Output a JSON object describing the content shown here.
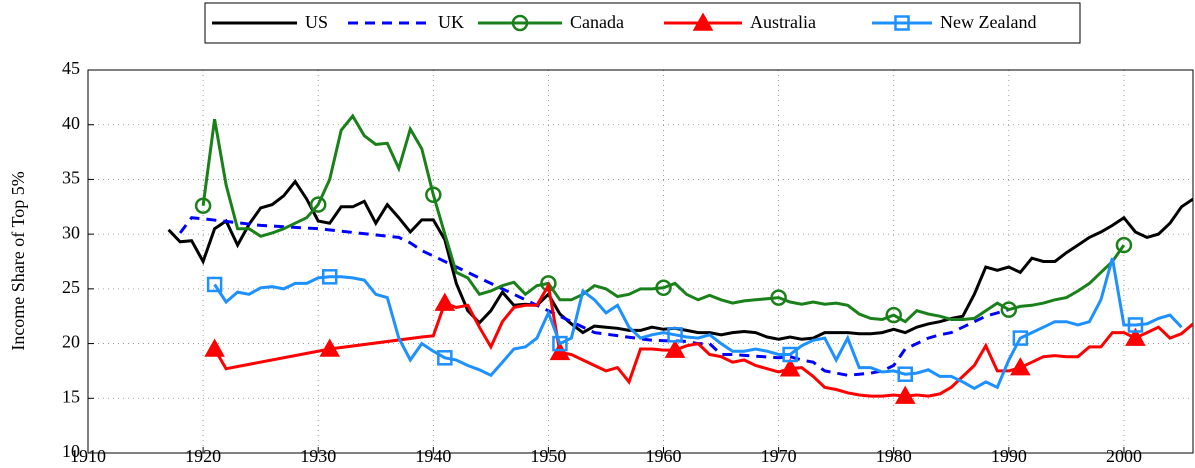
{
  "chart_data": {
    "type": "line",
    "y_label": "Income Share of Top 5%",
    "xlim": [
      1910,
      2006
    ],
    "xticks": [
      1910,
      1920,
      1930,
      1940,
      1950,
      1960,
      1970,
      1980,
      1990,
      2000
    ],
    "ylim": [
      10,
      45
    ],
    "yticks": [
      10,
      15,
      20,
      25,
      30,
      35,
      40,
      45
    ],
    "grid": true,
    "legend": "top",
    "marker_every": 10,
    "series": [
      {
        "name": "US",
        "color": "#000000",
        "dash": "solid",
        "marker": "none",
        "x": [
          1917,
          1918,
          1919,
          1920,
          1921,
          1922,
          1923,
          1924,
          1925,
          1926,
          1927,
          1928,
          1929,
          1930,
          1931,
          1932,
          1933,
          1934,
          1935,
          1936,
          1937,
          1938,
          1939,
          1940,
          1941,
          1942,
          1943,
          1944,
          1945,
          1946,
          1947,
          1948,
          1949,
          1950,
          1951,
          1952,
          1953,
          1954,
          1955,
          1956,
          1957,
          1958,
          1959,
          1960,
          1961,
          1962,
          1963,
          1964,
          1965,
          1966,
          1967,
          1968,
          1969,
          1970,
          1971,
          1972,
          1973,
          1974,
          1975,
          1976,
          1977,
          1978,
          1979,
          1980,
          1981,
          1982,
          1983,
          1984,
          1985,
          1986,
          1987,
          1988,
          1989,
          1990,
          1991,
          1992,
          1993,
          1994,
          1995,
          1996,
          1997,
          1998,
          1999,
          2000,
          2001,
          2002,
          2003,
          2004,
          2005,
          2006
        ],
        "values": [
          30.4,
          29.3,
          29.4,
          27.5,
          30.5,
          31.2,
          29.0,
          30.9,
          32.4,
          32.7,
          33.5,
          34.8,
          33.2,
          31.2,
          31.0,
          32.5,
          32.5,
          33.0,
          31.0,
          32.7,
          31.5,
          30.2,
          31.3,
          31.3,
          29.5,
          25.5,
          23.0,
          21.9,
          23.0,
          24.7,
          23.5,
          23.6,
          23.5,
          24.5,
          22.7,
          21.8,
          21.0,
          21.6,
          21.5,
          21.4,
          21.2,
          21.2,
          21.5,
          21.3,
          21.4,
          21.2,
          21.0,
          21.0,
          20.8,
          21.0,
          21.1,
          21.0,
          20.6,
          20.4,
          20.6,
          20.4,
          20.5,
          21.0,
          21.0,
          21.0,
          20.9,
          20.9,
          21.0,
          21.3,
          21.0,
          21.5,
          21.8,
          22.0,
          22.3,
          22.5,
          24.5,
          27.0,
          26.7,
          27.0,
          26.5,
          27.8,
          27.5,
          27.5,
          28.3,
          29.0,
          29.7,
          30.2,
          30.8,
          31.5,
          30.2,
          29.7,
          30.0,
          31.0,
          32.5,
          33.2
        ]
      },
      {
        "name": "UK",
        "color": "#0000ff",
        "dash": "dashed",
        "marker": "none",
        "x": [
          1918,
          1919,
          1920,
          1925,
          1930,
          1937,
          1938,
          1939,
          1940,
          1945,
          1949,
          1954,
          1959,
          1962,
          1963,
          1964,
          1965,
          1966,
          1970,
          1971,
          1972,
          1973,
          1974,
          1975,
          1976,
          1977,
          1978,
          1979,
          1980,
          1981,
          1982,
          1983,
          1984,
          1985,
          1986,
          1987,
          1988,
          1989,
          1990
        ],
        "values": [
          30.1,
          31.5,
          31.4,
          30.8,
          30.5,
          29.7,
          29.2,
          28.5,
          28.0,
          25.5,
          23.5,
          21.0,
          20.3,
          20.2,
          20.0,
          20.0,
          19.0,
          19.0,
          18.7,
          18.8,
          18.5,
          18.3,
          17.5,
          17.3,
          17.1,
          17.2,
          17.3,
          17.5,
          18.0,
          19.5,
          20.0,
          20.5,
          20.8,
          21.0,
          21.5,
          22.0,
          22.5,
          22.8,
          23.1
        ]
      },
      {
        "name": "Canada",
        "color": "#1a801a",
        "dash": "solid",
        "marker": "circle",
        "x": [
          1920,
          1921,
          1922,
          1923,
          1924,
          1925,
          1926,
          1927,
          1928,
          1929,
          1930,
          1931,
          1932,
          1933,
          1934,
          1935,
          1936,
          1937,
          1938,
          1939,
          1940,
          1941,
          1942,
          1943,
          1944,
          1945,
          1946,
          1947,
          1948,
          1949,
          1950,
          1951,
          1952,
          1953,
          1954,
          1955,
          1956,
          1957,
          1958,
          1959,
          1960,
          1961,
          1962,
          1963,
          1964,
          1965,
          1966,
          1967,
          1968,
          1969,
          1970,
          1971,
          1972,
          1973,
          1974,
          1975,
          1976,
          1977,
          1978,
          1979,
          1980,
          1981,
          1982,
          1983,
          1984,
          1985,
          1986,
          1987,
          1988,
          1989,
          1990,
          1991,
          1992,
          1993,
          1994,
          1995,
          1996,
          1997,
          1998,
          1999,
          2000
        ],
        "values": [
          32.6,
          40.5,
          34.5,
          30.5,
          30.5,
          29.8,
          30.1,
          30.5,
          31.0,
          31.5,
          32.7,
          35.0,
          39.5,
          40.8,
          39.0,
          38.2,
          38.3,
          36.0,
          39.6,
          37.8,
          33.6,
          30.0,
          26.5,
          26.0,
          24.5,
          24.8,
          25.3,
          25.6,
          24.5,
          25.3,
          25.5,
          24.0,
          24.0,
          24.5,
          25.3,
          25.0,
          24.3,
          24.5,
          25.0,
          25.0,
          25.1,
          25.5,
          24.5,
          24.0,
          24.4,
          24.0,
          23.7,
          23.9,
          24.0,
          24.1,
          24.2,
          23.8,
          23.6,
          23.8,
          23.6,
          23.7,
          23.5,
          22.7,
          22.3,
          22.2,
          22.6,
          22.0,
          23.0,
          22.7,
          22.5,
          22.2,
          22.2,
          22.3,
          23.0,
          23.7,
          23.1,
          23.4,
          23.5,
          23.7,
          24.0,
          24.2,
          24.8,
          25.5,
          26.5,
          27.5,
          29.0
        ]
      },
      {
        "name": "Australia",
        "color": "#ff0000",
        "dash": "solid",
        "marker": "triangle",
        "x": [
          1921,
          1922,
          1931,
          1939,
          1940,
          1941,
          1942,
          1943,
          1944,
          1945,
          1946,
          1947,
          1948,
          1949,
          1950,
          1951,
          1952,
          1953,
          1954,
          1955,
          1956,
          1957,
          1958,
          1959,
          1960,
          1961,
          1962,
          1963,
          1964,
          1965,
          1966,
          1967,
          1968,
          1969,
          1970,
          1971,
          1972,
          1973,
          1974,
          1975,
          1976,
          1977,
          1978,
          1979,
          1980,
          1981,
          1982,
          1983,
          1984,
          1985,
          1986,
          1987,
          1988,
          1989,
          1990,
          1991,
          1992,
          1993,
          1994,
          1995,
          1996,
          1997,
          1998,
          1999,
          2000,
          2001,
          2002,
          2003,
          2004,
          2005,
          2006
        ],
        "values": [
          19.5,
          17.7,
          19.5,
          20.6,
          20.7,
          23.7,
          23.3,
          23.5,
          21.5,
          19.7,
          22.0,
          23.3,
          23.5,
          23.5,
          25.3,
          19.2,
          19.0,
          18.5,
          18.0,
          17.5,
          17.8,
          16.5,
          19.5,
          19.5,
          19.4,
          19.4,
          19.8,
          20.0,
          19.0,
          18.8,
          18.3,
          18.5,
          18.0,
          17.7,
          17.4,
          17.7,
          17.8,
          17.0,
          16.0,
          15.8,
          15.5,
          15.3,
          15.2,
          15.2,
          15.3,
          15.2,
          15.3,
          15.2,
          15.4,
          16.0,
          17.0,
          18.0,
          19.8,
          17.5,
          17.5,
          17.8,
          18.3,
          18.8,
          18.9,
          18.8,
          18.8,
          19.7,
          19.7,
          21.0,
          21.0,
          20.5,
          21.0,
          21.5,
          20.5,
          20.9,
          21.8
        ]
      },
      {
        "name": "New Zealand",
        "color": "#1e90ff",
        "dash": "solid",
        "marker": "square",
        "x": [
          1921,
          1922,
          1923,
          1924,
          1925,
          1926,
          1927,
          1928,
          1929,
          1930,
          1931,
          1932,
          1933,
          1934,
          1935,
          1936,
          1937,
          1938,
          1939,
          1940,
          1941,
          1942,
          1943,
          1944,
          1945,
          1946,
          1947,
          1948,
          1949,
          1950,
          1951,
          1952,
          1953,
          1954,
          1955,
          1956,
          1957,
          1958,
          1959,
          1960,
          1961,
          1962,
          1963,
          1964,
          1965,
          1966,
          1967,
          1968,
          1969,
          1970,
          1971,
          1972,
          1973,
          1974,
          1975,
          1976,
          1977,
          1978,
          1979,
          1980,
          1981,
          1982,
          1983,
          1984,
          1985,
          1986,
          1987,
          1988,
          1989,
          1990,
          1991,
          1992,
          1993,
          1994,
          1995,
          1996,
          1997,
          1998,
          1999,
          2000,
          2001,
          2002,
          2003,
          2004,
          2005
        ],
        "values": [
          25.4,
          23.8,
          24.7,
          24.5,
          25.1,
          25.2,
          25.0,
          25.5,
          25.5,
          26.0,
          26.1,
          26.1,
          26.0,
          25.8,
          24.5,
          24.2,
          20.5,
          18.5,
          20.0,
          19.3,
          18.7,
          18.5,
          18.0,
          17.6,
          17.1,
          18.3,
          19.5,
          19.7,
          20.5,
          22.8,
          20.0,
          20.5,
          24.8,
          24.0,
          22.8,
          23.5,
          21.5,
          20.5,
          20.8,
          21.0,
          20.8,
          20.6,
          20.5,
          20.8,
          20.0,
          19.3,
          19.3,
          19.5,
          19.3,
          19.0,
          19.0,
          19.8,
          20.3,
          20.5,
          18.5,
          20.5,
          17.8,
          17.8,
          17.4,
          17.5,
          17.2,
          17.3,
          17.6,
          17.0,
          17.0,
          16.5,
          15.9,
          16.5,
          16.0,
          18.5,
          20.5,
          21.0,
          21.5,
          22.0,
          22.0,
          21.7,
          22.0,
          24.0,
          27.8,
          21.7,
          21.7,
          21.8,
          22.3,
          22.6,
          21.5
        ]
      }
    ]
  }
}
